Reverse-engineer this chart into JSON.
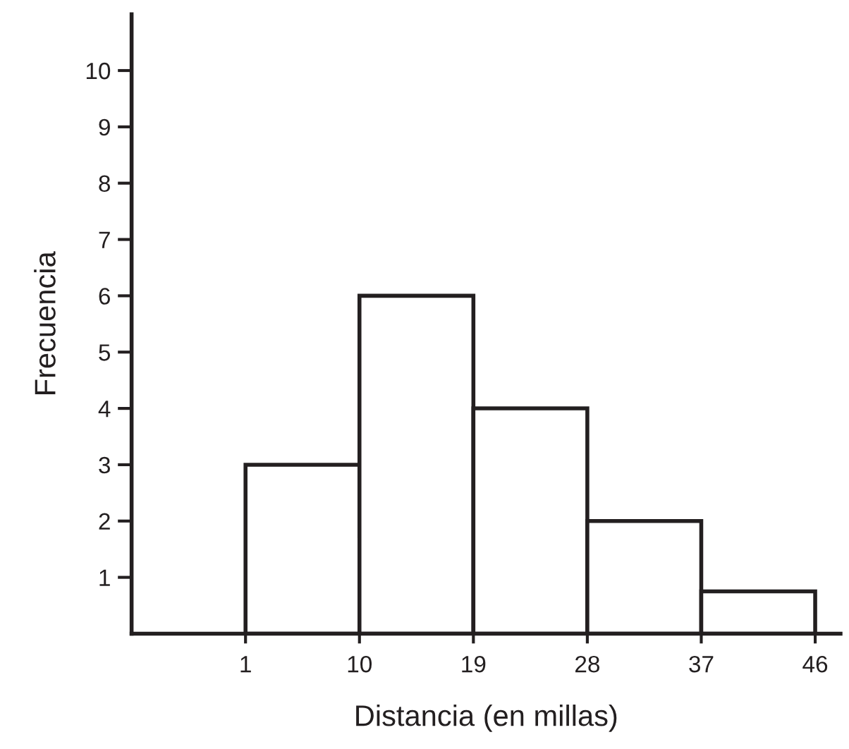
{
  "chart_data": {
    "type": "histogram",
    "xlabel": "Distancia (en millas)",
    "ylabel": "Frecuencia",
    "bins": [
      1,
      10,
      19,
      28,
      37,
      46
    ],
    "values": [
      3,
      6,
      4,
      2,
      0.75
    ],
    "color": "#ffffff",
    "xlim": [
      -8,
      48
    ],
    "ylim": [
      0,
      11
    ],
    "xticks": [
      1,
      10,
      19,
      28,
      37,
      46
    ],
    "yticks": [
      1,
      2,
      3,
      4,
      5,
      6,
      7,
      8,
      9,
      10
    ],
    "grid": false
  }
}
